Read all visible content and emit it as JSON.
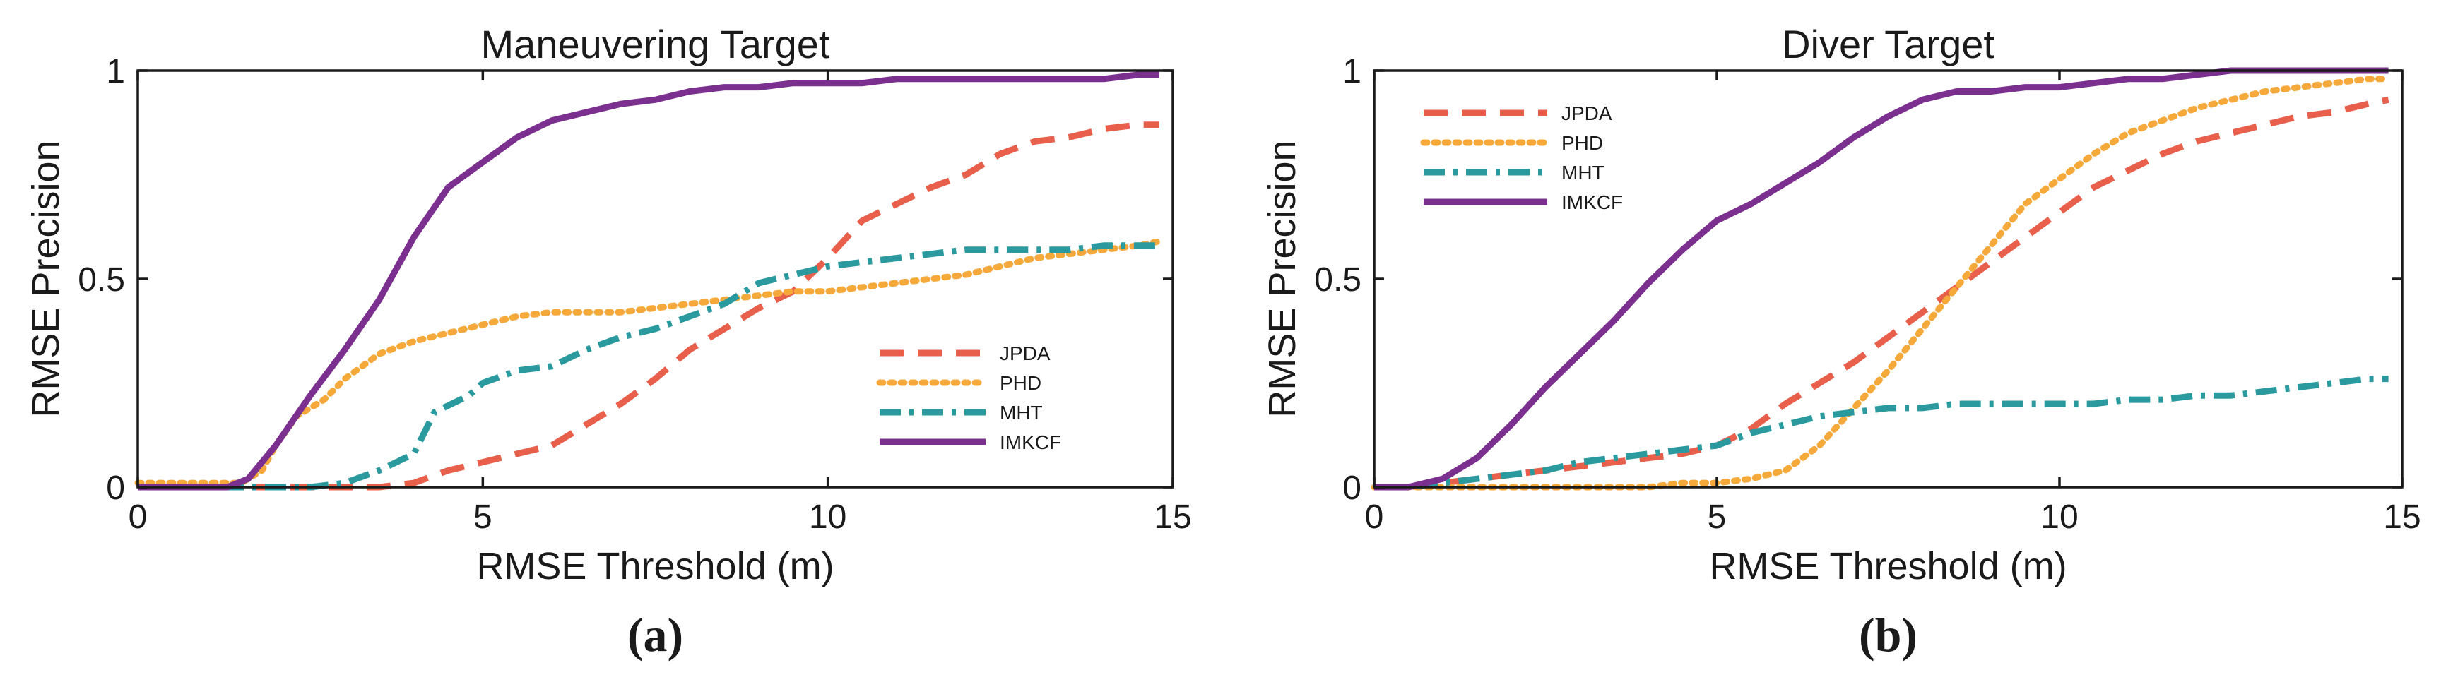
{
  "colors": {
    "JPDA": "#E8604C",
    "PHD": "#F6A93B",
    "MHT": "#2A9A9F",
    "IMKCF": "#7B2F8E",
    "axis": "#1a1a1a"
  },
  "chart_data": [
    {
      "type": "line",
      "title": "Maneuvering Target",
      "panel_label": "(a)",
      "xlabel": "RMSE Threshold (m)",
      "ylabel": "RMSE Precision",
      "xlim": [
        0,
        15
      ],
      "ylim": [
        0,
        1
      ],
      "xticks": [
        0,
        5,
        10,
        15
      ],
      "yticks": [
        0,
        0.5,
        1
      ],
      "ytick_labels": [
        "0",
        "0.5",
        "1"
      ],
      "grid": false,
      "legend_position": "lower-right",
      "series": [
        {
          "name": "JPDA",
          "style": "dashed",
          "x": [
            0,
            3.5,
            4.0,
            4.5,
            5.0,
            5.5,
            6.0,
            6.5,
            7.0,
            7.5,
            8.0,
            8.5,
            9.0,
            9.5,
            10.0,
            10.5,
            11.0,
            11.5,
            12.0,
            12.5,
            13.0,
            13.5,
            14.0,
            14.5,
            14.8
          ],
          "y": [
            0,
            0,
            0.01,
            0.04,
            0.06,
            0.08,
            0.1,
            0.15,
            0.2,
            0.26,
            0.33,
            0.38,
            0.43,
            0.47,
            0.55,
            0.64,
            0.68,
            0.72,
            0.75,
            0.8,
            0.83,
            0.84,
            0.86,
            0.87,
            0.87
          ]
        },
        {
          "name": "PHD",
          "style": "dotted",
          "x": [
            0,
            1.5,
            1.8,
            2.0,
            2.3,
            2.7,
            3.0,
            3.5,
            4.0,
            4.5,
            5.0,
            5.5,
            6.0,
            6.5,
            7.0,
            7.5,
            8.0,
            8.5,
            9.0,
            9.5,
            10.0,
            10.5,
            11.0,
            11.5,
            12.0,
            12.5,
            13.0,
            13.5,
            14.0,
            14.5,
            14.8
          ],
          "y": [
            0.01,
            0.01,
            0.04,
            0.1,
            0.17,
            0.21,
            0.26,
            0.32,
            0.35,
            0.37,
            0.39,
            0.41,
            0.42,
            0.42,
            0.42,
            0.43,
            0.44,
            0.45,
            0.46,
            0.47,
            0.47,
            0.48,
            0.49,
            0.5,
            0.51,
            0.53,
            0.55,
            0.56,
            0.57,
            0.58,
            0.59
          ]
        },
        {
          "name": "MHT",
          "style": "dashdot",
          "x": [
            0,
            2.0,
            2.5,
            3.0,
            3.5,
            4.0,
            4.3,
            4.8,
            5.0,
            5.5,
            6.0,
            6.5,
            7.0,
            7.5,
            8.0,
            8.5,
            9.0,
            9.5,
            10.0,
            10.5,
            11.0,
            11.5,
            12.0,
            12.5,
            13.0,
            13.5,
            14.0,
            14.5,
            14.8
          ],
          "y": [
            0,
            0,
            0,
            0.01,
            0.04,
            0.08,
            0.18,
            0.22,
            0.25,
            0.28,
            0.29,
            0.33,
            0.36,
            0.38,
            0.41,
            0.44,
            0.49,
            0.51,
            0.53,
            0.54,
            0.55,
            0.56,
            0.57,
            0.57,
            0.57,
            0.57,
            0.58,
            0.58,
            0.58
          ]
        },
        {
          "name": "IMKCF",
          "style": "solid",
          "x": [
            0,
            1.3,
            1.6,
            2.0,
            2.5,
            3.0,
            3.5,
            4.0,
            4.5,
            5.0,
            5.5,
            6.0,
            6.5,
            7.0,
            7.5,
            8.0,
            8.5,
            9.0,
            9.5,
            10.0,
            10.5,
            11.0,
            11.5,
            12.0,
            12.5,
            13.0,
            13.5,
            14.0,
            14.5,
            14.8
          ],
          "y": [
            0,
            0,
            0.02,
            0.1,
            0.22,
            0.33,
            0.45,
            0.6,
            0.72,
            0.78,
            0.84,
            0.88,
            0.9,
            0.92,
            0.93,
            0.95,
            0.96,
            0.96,
            0.97,
            0.97,
            0.97,
            0.98,
            0.98,
            0.98,
            0.98,
            0.98,
            0.98,
            0.98,
            0.99,
            0.99
          ]
        }
      ]
    },
    {
      "type": "line",
      "title": "Diver Target",
      "panel_label": "(b)",
      "xlabel": "RMSE Threshold (m)",
      "ylabel": "RMSE Precision",
      "xlim": [
        0,
        15
      ],
      "ylim": [
        0,
        1
      ],
      "xticks": [
        0,
        5,
        10,
        15
      ],
      "yticks": [
        0,
        0.5,
        1
      ],
      "ytick_labels": [
        "0",
        "0.5",
        "1"
      ],
      "grid": false,
      "legend_position": "upper-left",
      "series": [
        {
          "name": "JPDA",
          "style": "dashed",
          "x": [
            0,
            0.5,
            1.0,
            1.5,
            2.0,
            2.5,
            3.0,
            3.5,
            4.0,
            4.5,
            5.0,
            5.5,
            6.0,
            6.5,
            7.0,
            7.5,
            8.0,
            8.5,
            9.0,
            9.5,
            10.0,
            10.5,
            11.0,
            11.5,
            12.0,
            12.5,
            13.0,
            13.5,
            14.0,
            14.5,
            14.8
          ],
          "y": [
            0,
            0,
            0.01,
            0.02,
            0.03,
            0.04,
            0.05,
            0.06,
            0.07,
            0.08,
            0.1,
            0.14,
            0.2,
            0.25,
            0.3,
            0.36,
            0.42,
            0.48,
            0.54,
            0.6,
            0.66,
            0.72,
            0.76,
            0.8,
            0.83,
            0.85,
            0.87,
            0.89,
            0.9,
            0.92,
            0.93
          ]
        },
        {
          "name": "PHD",
          "style": "dotted",
          "x": [
            0,
            1.5,
            2.0,
            2.5,
            3.0,
            3.5,
            4.0,
            4.5,
            5.0,
            5.5,
            6.0,
            6.5,
            7.0,
            7.5,
            8.0,
            8.5,
            9.0,
            9.5,
            10.0,
            10.5,
            11.0,
            11.5,
            12.0,
            12.5,
            13.0,
            13.5,
            14.0,
            14.5,
            14.8
          ],
          "y": [
            0,
            0,
            0,
            0,
            0,
            0,
            0,
            0.01,
            0.01,
            0.02,
            0.04,
            0.1,
            0.19,
            0.28,
            0.38,
            0.48,
            0.58,
            0.68,
            0.74,
            0.8,
            0.85,
            0.88,
            0.91,
            0.93,
            0.95,
            0.96,
            0.97,
            0.98,
            0.98
          ]
        },
        {
          "name": "MHT",
          "style": "dashdot",
          "x": [
            0,
            0.5,
            1.0,
            1.5,
            2.0,
            2.5,
            3.0,
            3.5,
            4.0,
            4.5,
            5.0,
            5.5,
            6.0,
            6.5,
            7.0,
            7.5,
            8.0,
            8.5,
            9.0,
            9.5,
            10.0,
            10.5,
            11.0,
            11.5,
            12.0,
            12.5,
            13.0,
            13.5,
            14.0,
            14.5,
            14.8
          ],
          "y": [
            0,
            0,
            0.01,
            0.02,
            0.03,
            0.04,
            0.06,
            0.07,
            0.08,
            0.09,
            0.1,
            0.13,
            0.15,
            0.17,
            0.18,
            0.19,
            0.19,
            0.2,
            0.2,
            0.2,
            0.2,
            0.2,
            0.21,
            0.21,
            0.22,
            0.22,
            0.23,
            0.24,
            0.25,
            0.26,
            0.26
          ]
        },
        {
          "name": "IMKCF",
          "style": "solid",
          "x": [
            0,
            0.5,
            1.0,
            1.5,
            2.0,
            2.5,
            3.0,
            3.5,
            4.0,
            4.5,
            5.0,
            5.5,
            6.0,
            6.5,
            7.0,
            7.5,
            8.0,
            8.5,
            9.0,
            9.5,
            10.0,
            10.5,
            11.0,
            11.5,
            12.0,
            12.5,
            13.0,
            13.5,
            14.0,
            14.5,
            14.8
          ],
          "y": [
            0,
            0,
            0.02,
            0.07,
            0.15,
            0.24,
            0.32,
            0.4,
            0.49,
            0.57,
            0.64,
            0.68,
            0.73,
            0.78,
            0.84,
            0.89,
            0.93,
            0.95,
            0.95,
            0.96,
            0.96,
            0.97,
            0.98,
            0.98,
            0.99,
            1.0,
            1.0,
            1.0,
            1.0,
            1.0,
            1.0
          ]
        }
      ]
    }
  ]
}
